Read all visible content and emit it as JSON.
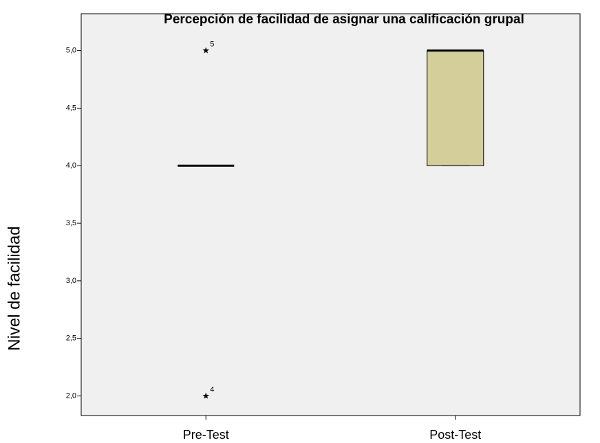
{
  "chart_data": {
    "type": "boxplot",
    "title": "Percepción de facilidad de asignar una calificación grupal",
    "y_label": "Nivel de facilidad",
    "categories": [
      "Pre-Test",
      "Post-Test"
    ],
    "boxes": [
      {
        "min": 4,
        "q1": 4,
        "median": 4,
        "q3": 4,
        "max": 4,
        "outliers": [
          {
            "value": 5,
            "label": "5"
          },
          {
            "value": 2,
            "label": "4"
          }
        ]
      },
      {
        "min": 4,
        "q1": 4,
        "median": 5,
        "q3": 5,
        "max": 5,
        "outliers": []
      }
    ],
    "color": "#d3ce9a",
    "ylim": [
      1.83,
      5.32
    ],
    "yticks": [
      {
        "value": 2,
        "label": "2,0"
      },
      {
        "value": 2.5,
        "label": "2,5"
      },
      {
        "value": 3,
        "label": "3,0"
      },
      {
        "value": 3.5,
        "label": "3,5"
      },
      {
        "value": 4,
        "label": "4,0"
      },
      {
        "value": 4.5,
        "label": "4,5"
      },
      {
        "value": 5,
        "label": "5,0"
      }
    ]
  }
}
